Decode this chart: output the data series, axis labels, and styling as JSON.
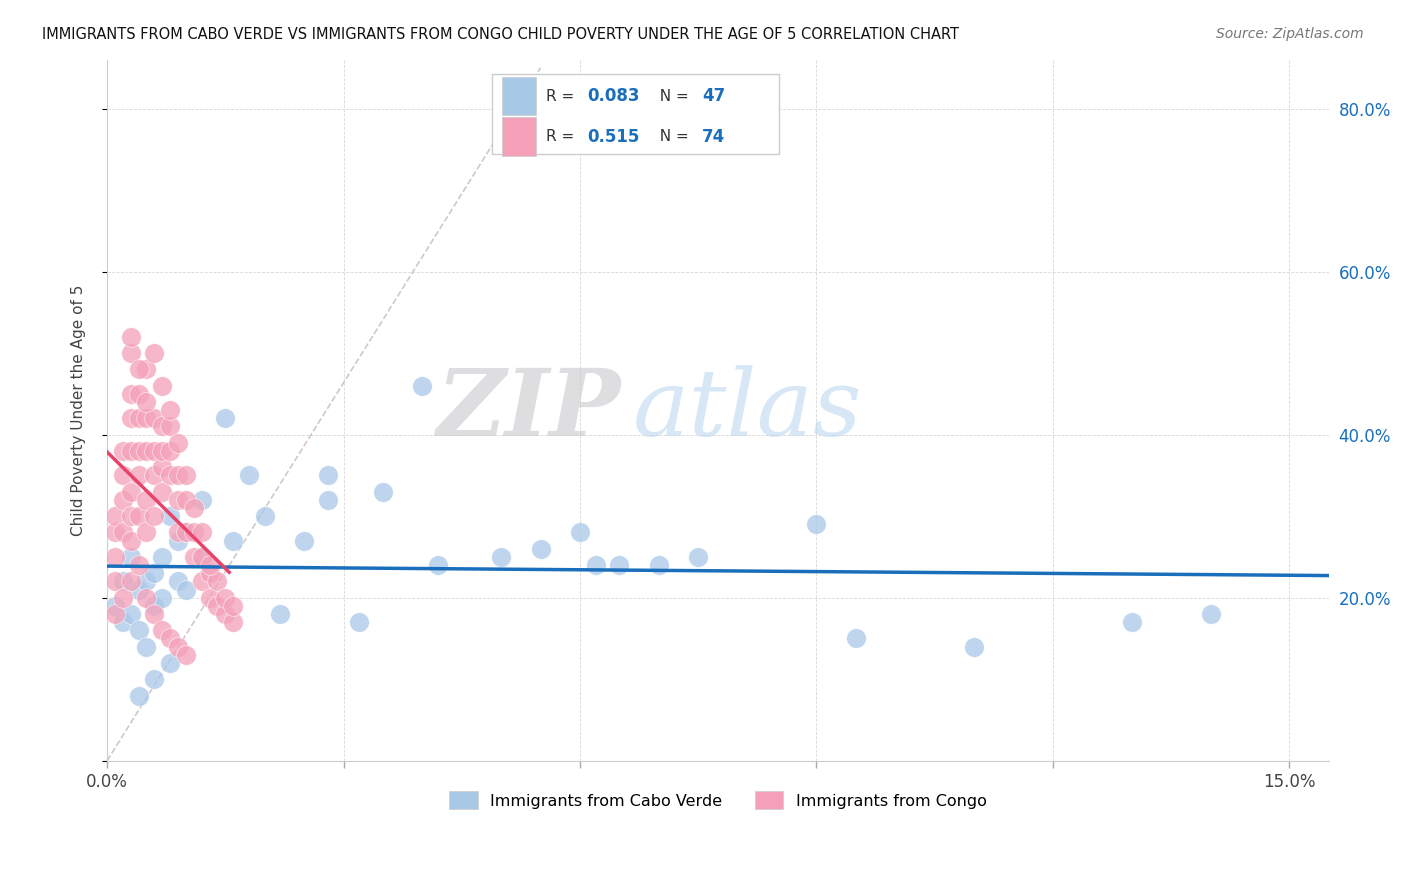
{
  "title": "IMMIGRANTS FROM CABO VERDE VS IMMIGRANTS FROM CONGO CHILD POVERTY UNDER THE AGE OF 5 CORRELATION CHART",
  "source": "Source: ZipAtlas.com",
  "ylabel_label": "Child Poverty Under the Age of 5",
  "x_ticks": [
    0.0,
    0.03,
    0.06,
    0.09,
    0.12,
    0.15
  ],
  "x_tick_labels": [
    "0.0%",
    "",
    "",
    "",
    "",
    "15.0%"
  ],
  "y_ticks": [
    0.0,
    0.2,
    0.4,
    0.6,
    0.8
  ],
  "y_tick_labels": [
    "",
    "20.0%",
    "40.0%",
    "60.0%",
    "80.0%"
  ],
  "xlim": [
    0.0,
    0.155
  ],
  "ylim": [
    0.0,
    0.86
  ],
  "cabo_verde_color": "#a8c8e8",
  "congo_color": "#f4a0b8",
  "cabo_verde_line_color": "#1a6fbd",
  "congo_line_color": "#e8436a",
  "diagonal_color": "#d0c0c0",
  "R_cabo": 0.083,
  "N_cabo": 47,
  "R_congo": 0.515,
  "N_congo": 74,
  "watermark_zip": "ZIP",
  "watermark_atlas": "atlas",
  "legend_label_cabo": "Immigrants from Cabo Verde",
  "legend_label_congo": "Immigrants from Congo",
  "cabo_verde_x": [
    0.001,
    0.002,
    0.002,
    0.003,
    0.003,
    0.004,
    0.004,
    0.005,
    0.005,
    0.006,
    0.006,
    0.007,
    0.007,
    0.008,
    0.009,
    0.009,
    0.01,
    0.01,
    0.012,
    0.012,
    0.015,
    0.016,
    0.018,
    0.02,
    0.022,
    0.025,
    0.028,
    0.028,
    0.032,
    0.035,
    0.04,
    0.042,
    0.05,
    0.055,
    0.06,
    0.062,
    0.065,
    0.07,
    0.075,
    0.09,
    0.095,
    0.11,
    0.13,
    0.14,
    0.004,
    0.006,
    0.008
  ],
  "cabo_verde_y": [
    0.19,
    0.17,
    0.22,
    0.25,
    0.18,
    0.16,
    0.21,
    0.14,
    0.22,
    0.23,
    0.19,
    0.2,
    0.25,
    0.3,
    0.27,
    0.22,
    0.21,
    0.28,
    0.32,
    0.25,
    0.42,
    0.27,
    0.35,
    0.3,
    0.18,
    0.27,
    0.32,
    0.35,
    0.17,
    0.33,
    0.46,
    0.24,
    0.25,
    0.26,
    0.28,
    0.24,
    0.24,
    0.24,
    0.25,
    0.29,
    0.15,
    0.14,
    0.17,
    0.18,
    0.08,
    0.1,
    0.12
  ],
  "congo_x": [
    0.001,
    0.001,
    0.001,
    0.001,
    0.002,
    0.002,
    0.002,
    0.002,
    0.003,
    0.003,
    0.003,
    0.003,
    0.003,
    0.003,
    0.003,
    0.004,
    0.004,
    0.004,
    0.004,
    0.004,
    0.005,
    0.005,
    0.005,
    0.005,
    0.005,
    0.006,
    0.006,
    0.006,
    0.006,
    0.007,
    0.007,
    0.007,
    0.007,
    0.008,
    0.008,
    0.008,
    0.009,
    0.009,
    0.009,
    0.01,
    0.01,
    0.011,
    0.011,
    0.012,
    0.012,
    0.013,
    0.013,
    0.014,
    0.014,
    0.015,
    0.015,
    0.016,
    0.016,
    0.003,
    0.004,
    0.005,
    0.006,
    0.007,
    0.008,
    0.009,
    0.01,
    0.011,
    0.012,
    0.013,
    0.001,
    0.002,
    0.003,
    0.004,
    0.005,
    0.006,
    0.007,
    0.008,
    0.009,
    0.01
  ],
  "congo_y": [
    0.22,
    0.25,
    0.28,
    0.3,
    0.28,
    0.32,
    0.35,
    0.38,
    0.27,
    0.3,
    0.33,
    0.38,
    0.42,
    0.45,
    0.5,
    0.3,
    0.35,
    0.38,
    0.42,
    0.45,
    0.28,
    0.32,
    0.38,
    0.42,
    0.48,
    0.3,
    0.35,
    0.38,
    0.42,
    0.33,
    0.36,
    0.38,
    0.41,
    0.35,
    0.38,
    0.41,
    0.28,
    0.32,
    0.35,
    0.28,
    0.32,
    0.25,
    0.28,
    0.22,
    0.25,
    0.2,
    0.23,
    0.19,
    0.22,
    0.18,
    0.2,
    0.17,
    0.19,
    0.52,
    0.48,
    0.44,
    0.5,
    0.46,
    0.43,
    0.39,
    0.35,
    0.31,
    0.28,
    0.24,
    0.18,
    0.2,
    0.22,
    0.24,
    0.2,
    0.18,
    0.16,
    0.15,
    0.14,
    0.13
  ]
}
